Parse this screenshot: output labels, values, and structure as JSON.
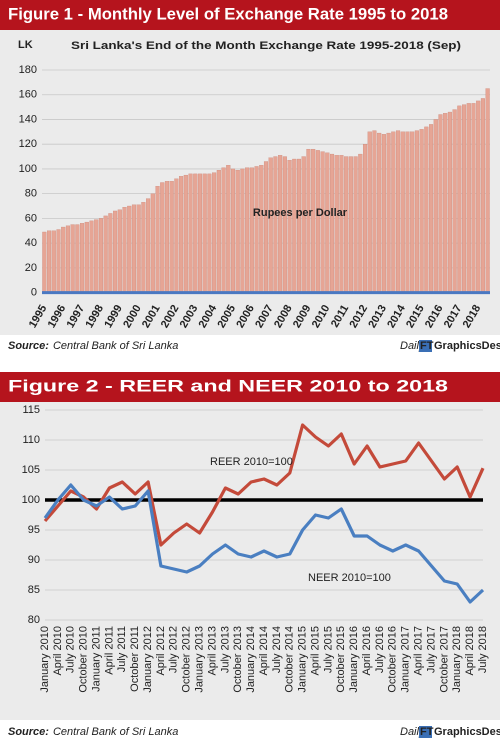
{
  "chart_data": [
    {
      "type": "bar",
      "title": "Figure 1 - Monthly Level of Exchange Rate 1995 to 2018",
      "subtitle": "Sri Lanka's End of the Month Exchange Rate 1995-2018 (Sep)",
      "y_label": "LK",
      "annotation": "Rupees per Dollar",
      "source_label": "Source:",
      "source": "Central Bank of Sri Lanka",
      "logo": [
        "Daily",
        "FT",
        "GraphicsDesk"
      ],
      "color": "#e6a595",
      "baseline_color": "#4a78c2",
      "categories": [
        "1995",
        null,
        null,
        null,
        "1996",
        null,
        null,
        null,
        "1997",
        null,
        null,
        null,
        "1998",
        null,
        null,
        null,
        "1999",
        null,
        null,
        null,
        "2000",
        null,
        null,
        null,
        "2001",
        null,
        null,
        null,
        "2002",
        null,
        null,
        null,
        "2003",
        null,
        null,
        null,
        "2004",
        null,
        null,
        null,
        "2005",
        null,
        null,
        null,
        "2006",
        null,
        null,
        null,
        "2007",
        null,
        null,
        null,
        "2008",
        null,
        null,
        null,
        "2009",
        null,
        null,
        null,
        "2010",
        null,
        null,
        null,
        "2011",
        null,
        null,
        null,
        "2012",
        null,
        null,
        null,
        "2013",
        null,
        null,
        null,
        "2014",
        null,
        null,
        null,
        "2015",
        null,
        null,
        null,
        "2016",
        null,
        null,
        null,
        "2017",
        null,
        null,
        null,
        "2018",
        null,
        null
      ],
      "values": [
        49,
        50,
        50,
        51,
        53,
        54,
        55,
        55,
        56,
        57,
        58,
        59,
        60,
        62,
        64,
        66,
        67,
        69,
        70,
        71,
        71,
        73,
        76,
        80,
        86,
        89,
        90,
        90,
        92,
        94,
        95,
        96,
        96,
        96,
        96,
        96,
        97,
        99,
        101,
        103,
        100,
        99,
        100,
        101,
        101,
        102,
        103,
        106,
        109,
        110,
        111,
        110,
        107,
        108,
        108,
        110,
        116,
        116,
        115,
        114,
        113,
        112,
        111,
        111,
        110,
        110,
        110,
        112,
        120,
        130,
        131,
        129,
        128,
        129,
        130,
        131,
        130,
        130,
        130,
        131,
        132,
        134,
        136,
        140,
        144,
        145,
        146,
        148,
        151,
        152,
        153,
        153,
        155,
        157,
        165
      ],
      "ylim": [
        -6,
        180
      ],
      "yticks": [
        0,
        20,
        40,
        60,
        80,
        100,
        120,
        140,
        160,
        180
      ],
      "grid": true
    },
    {
      "type": "line",
      "title": "Figure 2 - REER and NEER 2010 to 2018",
      "source_label": "Source:",
      "source": "Central Bank of Sri Lanka",
      "logo": [
        "Daily",
        "FT",
        "GraphicsDesk"
      ],
      "categories": [
        "January 2010",
        "April 2010",
        "July 2010",
        "October 2010",
        "January 2011",
        "April 2011",
        "July 2011",
        "October 2011",
        "January 2012",
        "April 2012",
        "July 2012",
        "October 2012",
        "January 2013",
        "April 2013",
        "July 2013",
        "October 2013",
        "January 2014",
        "April 2014",
        "July 2014",
        "October 2014",
        "January 2015",
        "April 2015",
        "July 2015",
        "October 2015",
        "January 2016",
        "April 2016",
        "July 2016",
        "October 2016",
        "January 2017",
        "April 2017",
        "July 2017",
        "October 2017",
        "January 2018",
        "April 2018",
        "July 2018"
      ],
      "series": [
        {
          "name": "REER 2010=100",
          "color": "#c44a3a",
          "values": [
            96.5,
            99,
            101.5,
            100.5,
            98.5,
            102,
            103,
            101,
            103,
            92.5,
            94.5,
            96,
            94.5,
            98,
            102,
            101,
            103,
            103.5,
            102.5,
            104.5,
            112.5,
            110.5,
            109,
            111,
            106,
            109,
            105.5,
            106,
            106.5,
            109.5,
            106.5,
            103.5,
            105.5,
            100.5,
            105.3
          ]
        },
        {
          "name": "NEER 2010=100",
          "color": "#4a7fc1",
          "values": [
            97,
            100,
            102.5,
            100,
            99,
            100.5,
            98.5,
            99,
            101.5,
            89,
            88.5,
            88,
            89,
            91,
            92.5,
            91,
            90.5,
            91.5,
            90.5,
            91,
            95,
            97.5,
            97,
            98.5,
            94,
            94,
            92.5,
            91.5,
            92.5,
            91.5,
            89,
            86.5,
            86,
            83,
            85
          ]
        }
      ],
      "hline": {
        "value": 100,
        "color": "#000000"
      },
      "ylim": [
        80,
        115
      ],
      "yticks": [
        80,
        85,
        90,
        95,
        100,
        105,
        110,
        115
      ],
      "grid": true
    }
  ]
}
